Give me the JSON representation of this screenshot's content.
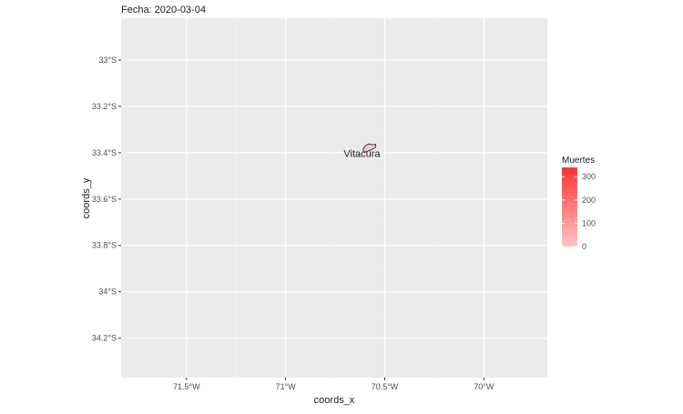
{
  "chart_data": {
    "type": "map",
    "title": "Fecha: 2020-03-04",
    "xlabel": "coords_x",
    "ylabel": "coords_y",
    "x_ticks": [
      {
        "value": -71.5,
        "label": "71.5°W"
      },
      {
        "value": -71.0,
        "label": "71°W"
      },
      {
        "value": -70.5,
        "label": "70.5°W"
      },
      {
        "value": -70.0,
        "label": "70°W"
      }
    ],
    "y_ticks": [
      {
        "value": -33.0,
        "label": "33°S"
      },
      {
        "value": -33.2,
        "label": "33.2°S"
      },
      {
        "value": -33.4,
        "label": "33.4°S"
      },
      {
        "value": -33.6,
        "label": "33.6°S"
      },
      {
        "value": -33.8,
        "label": "33.8°S"
      },
      {
        "value": -34.0,
        "label": "34°S"
      },
      {
        "value": -34.2,
        "label": "34.2°S"
      }
    ],
    "xlim": [
      -71.83,
      -69.68
    ],
    "ylim": [
      -34.37,
      -32.82
    ],
    "grid": true,
    "legend": {
      "title": "Muertes",
      "placement": "right",
      "range": [
        0,
        340
      ],
      "breaks": [
        {
          "value": 0,
          "label": "0"
        },
        {
          "value": 100,
          "label": "100"
        },
        {
          "value": 200,
          "label": "200"
        },
        {
          "value": 300,
          "label": "300"
        }
      ],
      "color_low": "#fcc5c5",
      "color_high": "#ff3333"
    },
    "regions": [
      {
        "name": "Vitacura",
        "value": 0,
        "fill": "#f4c7c7",
        "outline": [
          [
            -70.61,
            -33.385
          ],
          [
            -70.595,
            -33.368
          ],
          [
            -70.58,
            -33.362
          ],
          [
            -70.565,
            -33.366
          ],
          [
            -70.545,
            -33.364
          ],
          [
            -70.548,
            -33.378
          ],
          [
            -70.57,
            -33.388
          ],
          [
            -70.59,
            -33.395
          ],
          [
            -70.605,
            -33.398
          ]
        ],
        "label_at": [
          -70.615,
          -33.402
        ]
      }
    ]
  }
}
